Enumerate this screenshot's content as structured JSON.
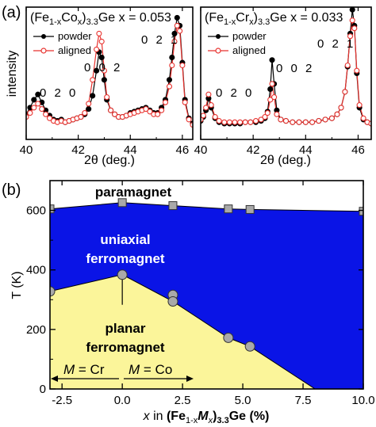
{
  "figure": {
    "panel_a_tag": "(a)",
    "panel_b_tag": "(b)"
  },
  "chart_data": [
    {
      "type": "line",
      "panel": "(a) left",
      "title_parts": {
        "pre": "(Fe",
        "sub1": "1-x",
        "mid": "Co",
        "sub2": "x",
        "post": ")",
        "sub3": "3.3",
        "tail": "Ge x = 0.053"
      },
      "xlabel": "2θ (deg.)",
      "ylabel": "intensity",
      "xlim": [
        40.0,
        46.4
      ],
      "ylim": [
        0,
        1.0
      ],
      "xticks": [
        "40",
        "42",
        "44",
        "46"
      ],
      "peak_labels": [
        "0 2 0",
        "0 0 2",
        "0 2 1"
      ],
      "legend": [
        "powder",
        "aligned"
      ],
      "series": [
        {
          "name": "powder",
          "color": "#000000",
          "x": [
            40.0,
            40.15,
            40.3,
            40.45,
            40.6,
            40.75,
            40.9,
            41.05,
            41.2,
            41.35,
            41.5,
            41.65,
            41.8,
            41.95,
            42.1,
            42.25,
            42.4,
            42.55,
            42.7,
            42.8,
            42.9,
            43.0,
            43.1,
            43.25,
            43.4,
            43.55,
            43.7,
            43.85,
            44.0,
            44.15,
            44.3,
            44.45,
            44.6,
            44.75,
            44.9,
            45.05,
            45.2,
            45.35,
            45.5,
            45.6,
            45.7,
            45.8,
            45.9,
            46.0,
            46.1,
            46.25,
            46.4
          ],
          "y": [
            0.19,
            0.24,
            0.3,
            0.34,
            0.28,
            0.22,
            0.18,
            0.15,
            0.14,
            0.15,
            0.13,
            0.14,
            0.15,
            0.16,
            0.17,
            0.19,
            0.23,
            0.33,
            0.52,
            0.66,
            0.62,
            0.45,
            0.3,
            0.22,
            0.19,
            0.17,
            0.17,
            0.18,
            0.2,
            0.21,
            0.22,
            0.23,
            0.24,
            0.22,
            0.2,
            0.2,
            0.24,
            0.3,
            0.45,
            0.62,
            0.8,
            0.92,
            0.86,
            0.58,
            0.3,
            0.16,
            0.12
          ]
        },
        {
          "name": "aligned",
          "color": "#e8322e",
          "x": [
            40.0,
            40.15,
            40.3,
            40.45,
            40.6,
            40.75,
            40.9,
            41.05,
            41.2,
            41.35,
            41.5,
            41.65,
            41.8,
            41.95,
            42.1,
            42.25,
            42.4,
            42.55,
            42.7,
            42.8,
            42.9,
            43.0,
            43.1,
            43.25,
            43.4,
            43.55,
            43.7,
            43.85,
            44.0,
            44.15,
            44.3,
            44.45,
            44.6,
            44.75,
            44.9,
            45.05,
            45.2,
            45.35,
            45.5,
            45.6,
            45.7,
            45.8,
            45.9,
            46.0,
            46.1,
            46.25,
            46.4
          ],
          "y": [
            0.17,
            0.2,
            0.24,
            0.27,
            0.23,
            0.19,
            0.16,
            0.14,
            0.13,
            0.14,
            0.13,
            0.14,
            0.15,
            0.16,
            0.17,
            0.2,
            0.27,
            0.45,
            0.68,
            0.8,
            0.74,
            0.52,
            0.32,
            0.22,
            0.19,
            0.17,
            0.17,
            0.18,
            0.19,
            0.2,
            0.21,
            0.22,
            0.23,
            0.21,
            0.19,
            0.19,
            0.22,
            0.28,
            0.4,
            0.56,
            0.74,
            0.86,
            0.82,
            0.56,
            0.28,
            0.15,
            0.11
          ]
        }
      ]
    },
    {
      "type": "line",
      "panel": "(a) right",
      "title_parts": {
        "pre": "(Fe",
        "sub1": "1-x",
        "mid": "Cr",
        "sub2": "x",
        "post": ")",
        "sub3": "3.3",
        "tail": "Ge x = 0.033"
      },
      "xlabel": "2θ (deg.)",
      "xlim": [
        40.0,
        46.5
      ],
      "ylim": [
        0,
        1.0
      ],
      "xticks": [
        "40",
        "42",
        "44",
        "46"
      ],
      "peak_labels": [
        "0 2 0",
        "0 0 2",
        "0 2 1"
      ],
      "legend": [
        "powder",
        "aligned"
      ],
      "series": [
        {
          "name": "powder",
          "color": "#000000",
          "x": [
            40.0,
            40.1,
            40.2,
            40.3,
            40.4,
            40.55,
            40.7,
            40.9,
            41.1,
            41.3,
            41.5,
            41.7,
            41.9,
            42.1,
            42.3,
            42.45,
            42.55,
            42.65,
            42.72,
            42.8,
            42.9,
            43.05,
            43.25,
            43.5,
            43.75,
            44.0,
            44.25,
            44.5,
            44.75,
            45.0,
            45.2,
            45.35,
            45.5,
            45.6,
            45.7,
            45.78,
            45.86,
            45.95,
            46.05,
            46.2,
            46.35,
            46.5
          ],
          "y": [
            0.14,
            0.17,
            0.22,
            0.31,
            0.24,
            0.16,
            0.13,
            0.12,
            0.12,
            0.12,
            0.12,
            0.13,
            0.13,
            0.13,
            0.14,
            0.16,
            0.21,
            0.38,
            0.6,
            0.42,
            0.22,
            0.15,
            0.14,
            0.13,
            0.13,
            0.13,
            0.13,
            0.14,
            0.15,
            0.16,
            0.19,
            0.24,
            0.36,
            0.55,
            0.8,
            0.98,
            0.86,
            0.5,
            0.24,
            0.15,
            0.13,
            0.12
          ]
        },
        {
          "name": "aligned",
          "color": "#e8322e",
          "x": [
            40.0,
            40.1,
            40.2,
            40.3,
            40.4,
            40.55,
            40.7,
            40.9,
            41.1,
            41.3,
            41.5,
            41.7,
            41.9,
            42.1,
            42.3,
            42.45,
            42.55,
            42.65,
            42.72,
            42.8,
            42.9,
            43.05,
            43.25,
            43.5,
            43.75,
            44.0,
            44.25,
            44.5,
            44.75,
            45.0,
            45.2,
            45.35,
            45.5,
            45.6,
            45.7,
            45.78,
            45.86,
            45.95,
            46.05,
            46.2,
            46.35,
            46.5
          ],
          "y": [
            0.15,
            0.18,
            0.24,
            0.34,
            0.26,
            0.17,
            0.14,
            0.13,
            0.13,
            0.13,
            0.13,
            0.13,
            0.13,
            0.14,
            0.15,
            0.17,
            0.2,
            0.3,
            0.42,
            0.32,
            0.19,
            0.15,
            0.14,
            0.13,
            0.13,
            0.13,
            0.13,
            0.14,
            0.15,
            0.16,
            0.19,
            0.24,
            0.36,
            0.56,
            0.78,
            0.9,
            0.84,
            0.52,
            0.26,
            0.16,
            0.13,
            0.12
          ]
        }
      ]
    },
    {
      "type": "area",
      "panel": "(b)",
      "xlabel_parts": {
        "x": "x",
        "in": " in ",
        "fe": "(Fe",
        "sub1": "1-x",
        "m": "M",
        "sub2": "x",
        "close": ")",
        "sub3": "3.3",
        "ge": "Ge (%)"
      },
      "ylabel": "T (K)",
      "xlim": [
        -3.0,
        10.0
      ],
      "ylim": [
        0,
        700
      ],
      "xticks": [
        "-2.5",
        "0.0",
        "2.5",
        "5.0",
        "7.5",
        "10.0"
      ],
      "yticks": [
        "0",
        "200",
        "400",
        "600"
      ],
      "regions": [
        {
          "label": "paramagnet",
          "color": "#ffffff"
        },
        {
          "label_lines": [
            "uniaxial",
            "ferromagnet"
          ],
          "color": "#0a14e6"
        },
        {
          "label_lines": [
            "planar",
            "ferromagnet"
          ],
          "color": "#fbf59a"
        }
      ],
      "boundaries": {
        "curie": {
          "x": [
            -3.0,
            0.0,
            2.1,
            4.4,
            5.3,
            10.0
          ],
          "y": [
            605,
            626,
            616,
            605,
            603,
            597
          ]
        },
        "spin_reorientation": {
          "x": [
            -3.0,
            0.0,
            2.1,
            4.4,
            5.3,
            8.0
          ],
          "y": [
            328,
            384,
            294,
            172,
            143,
            0
          ]
        }
      },
      "markers": {
        "square": {
          "x": [
            -3.0,
            0.0,
            2.1,
            4.4,
            5.3,
            10.0
          ],
          "y": [
            605,
            626,
            616,
            605,
            603,
            597
          ]
        },
        "circle": {
          "x": [
            -3.0,
            0.0,
            2.1,
            2.1,
            4.4,
            5.3
          ],
          "y": [
            328,
            384,
            316,
            294,
            172,
            143
          ]
        }
      },
      "arrows": {
        "left": {
          "M": "M",
          "eq": " = Cr"
        },
        "right": {
          "M": "M",
          "eq": " = Co"
        }
      }
    }
  ]
}
